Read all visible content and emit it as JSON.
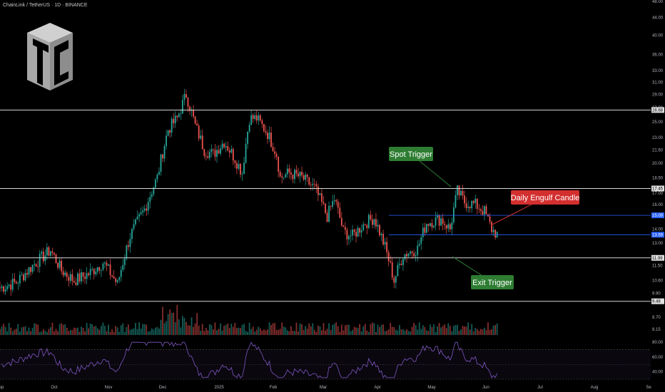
{
  "header": {
    "title": "ChainLink / TetherUS · 1D · BINANCE"
  },
  "colors": {
    "up": "#26a69a",
    "down": "#ef5350",
    "bg": "#000000",
    "level": "#d8d8d8",
    "zone": "#2962ff",
    "green_callout": "#2e7d32",
    "red_callout": "#d32f2f",
    "rsi": "#7e57c2"
  },
  "icons": {
    "logo": "tc-cube-logo-icon"
  },
  "chart_data": {
    "type": "candlestick",
    "symbol": "ChainLink / TetherUS",
    "interval": "1D",
    "exchange": "BINANCE",
    "y_scale": "log",
    "ylim": [
      7.9,
      48.0
    ],
    "x_ticks": [
      "Sep",
      "Oct",
      "Nov",
      "Dec",
      "2025",
      "Feb",
      "Mar",
      "Apr",
      "May",
      "Jun",
      "Jul",
      "Aug",
      "Se"
    ],
    "y_ticks": [
      "48.00",
      "44.00",
      "40.00",
      "36.00",
      "33.00",
      "31.00",
      "29.00",
      "27.00",
      "25.00",
      "23.00",
      "21.50",
      "20.00",
      "18.50",
      "17.00",
      "16.00",
      "14.00",
      "13.00",
      "11.50",
      "10.60",
      "9.90",
      "8.70",
      "8.15"
    ],
    "levels": [
      {
        "price": "26.68",
        "style": "solid",
        "color": "#d8d8d8"
      },
      {
        "price": "17.45",
        "style": "solid",
        "color": "#d8d8d8"
      },
      {
        "price": "15.09",
        "style": "solid",
        "color": "#2962ff"
      },
      {
        "price": "13.59",
        "style": "solid",
        "color": "#2962ff"
      },
      {
        "price": "11.99",
        "style": "solid",
        "color": "#d8d8d8"
      },
      {
        "price": "9.48",
        "style": "solid",
        "color": "#d8d8d8"
      }
    ],
    "annotations": [
      {
        "label": "Spot Trigger",
        "color": "#2e7d32"
      },
      {
        "label": "Daily Engulf Candle",
        "color": "#d32f2f"
      },
      {
        "label": "Exit Trigger",
        "color": "#2e7d32"
      }
    ],
    "price_points": [
      [
        "Sep 1",
        10.2
      ],
      [
        "Sep 10",
        10.5
      ],
      [
        "Sep 20",
        11.6
      ],
      [
        "Sep 29",
        12.5
      ],
      [
        "Oct 5",
        11.2
      ],
      [
        "Oct 12",
        10.6
      ],
      [
        "Oct 20",
        11.0
      ],
      [
        "Oct 28",
        11.7
      ],
      [
        "Nov 5",
        10.4
      ],
      [
        "Nov 12",
        13.5
      ],
      [
        "Nov 20",
        15.6
      ],
      [
        "Nov 27",
        18.5
      ],
      [
        "Dec 3",
        24.0
      ],
      [
        "Dec 8",
        25.5
      ],
      [
        "Dec 13",
        29.0
      ],
      [
        "Dec 18",
        24.5
      ],
      [
        "Dec 23",
        21.5
      ],
      [
        "Dec 28",
        21.0
      ],
      [
        "Jan 3",
        22.5
      ],
      [
        "Jan 9",
        20.5
      ],
      [
        "Jan 13",
        19.0
      ],
      [
        "Jan 17",
        25.5
      ],
      [
        "Jan 21",
        25.5
      ],
      [
        "Jan 27",
        23.5
      ],
      [
        "Feb 1",
        21.0
      ],
      [
        "Feb 3",
        18.5
      ],
      [
        "Feb 8",
        19.0
      ],
      [
        "Feb 15",
        18.5
      ],
      [
        "Feb 22",
        17.5
      ],
      [
        "Mar 1",
        15.0
      ],
      [
        "Mar 5",
        16.5
      ],
      [
        "Mar 10",
        13.8
      ],
      [
        "Mar 15",
        13.5
      ],
      [
        "Mar 22",
        14.5
      ],
      [
        "Mar 27",
        14.9
      ],
      [
        "Apr 2",
        12.7
      ],
      [
        "Apr 7",
        10.6
      ],
      [
        "Apr 12",
        12.2
      ],
      [
        "Apr 20",
        12.6
      ],
      [
        "Apr 25",
        14.5
      ],
      [
        "May 3",
        14.8
      ],
      [
        "May 8",
        14.0
      ],
      [
        "May 12",
        17.2
      ],
      [
        "May 16",
        16.2
      ],
      [
        "May 22",
        16.0
      ],
      [
        "May 27",
        15.4
      ],
      [
        "May 31",
        14.0
      ],
      [
        "Jun 3",
        13.6
      ]
    ],
    "rsi": {
      "ylim": [
        30,
        85
      ],
      "ticks": [
        "80.00",
        "60.00",
        "40.00"
      ],
      "bands": [
        70,
        30
      ]
    }
  }
}
